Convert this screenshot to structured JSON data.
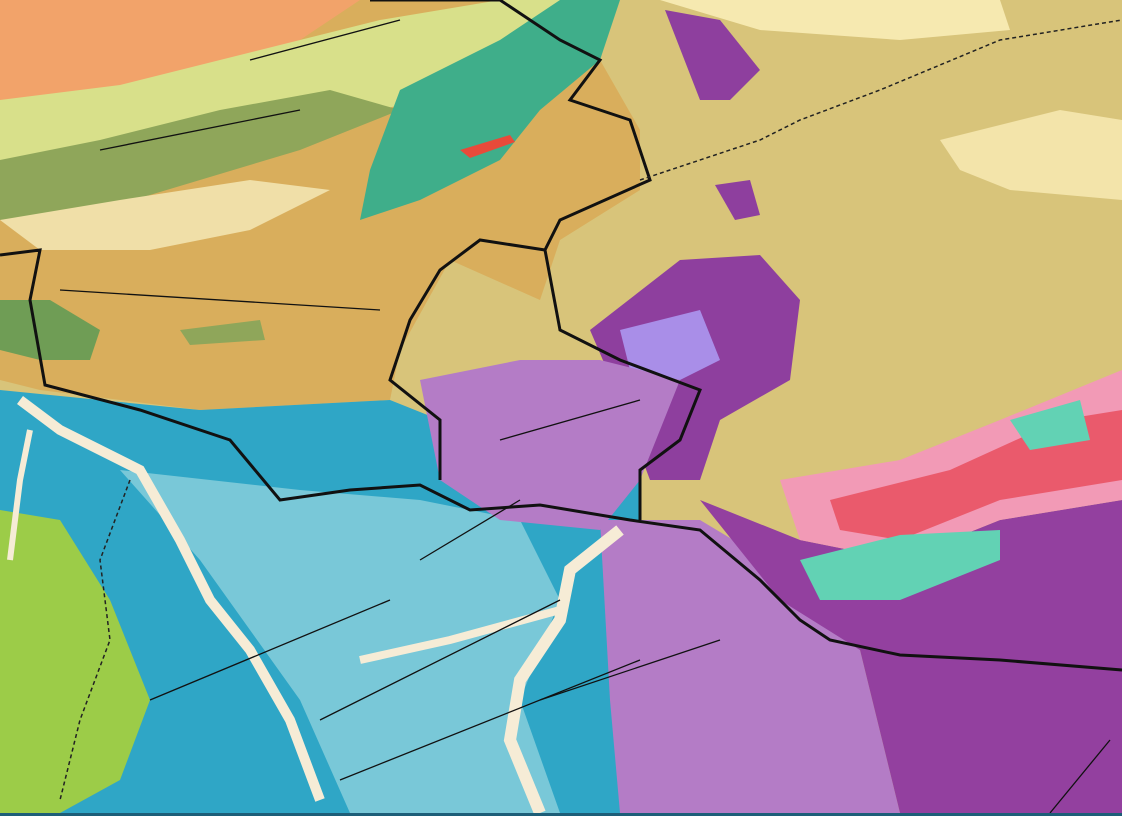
{
  "map": {
    "type": "geological map",
    "colors": {
      "tan_sediment": "#d8c47a",
      "ochre_plain": "#d9ae5c",
      "orange_upland": "#f2a36a",
      "yellow_green": "#d8e08a",
      "olive_green": "#8fa65a",
      "teal_green": "#3fae8a",
      "purple_intrusive": "#8e3f9e",
      "lilac": "#b47cc6",
      "lavender": "#a98ee8",
      "blue_deep": "#2fa6c6",
      "blue_light": "#79c8d8",
      "river_cream": "#f6ecd6",
      "lime_green": "#9ccc48",
      "pink": "#f29ab6",
      "red_coral": "#ea5a6c",
      "aquamarine": "#62d2b4",
      "border_black": "#111111"
    }
  }
}
